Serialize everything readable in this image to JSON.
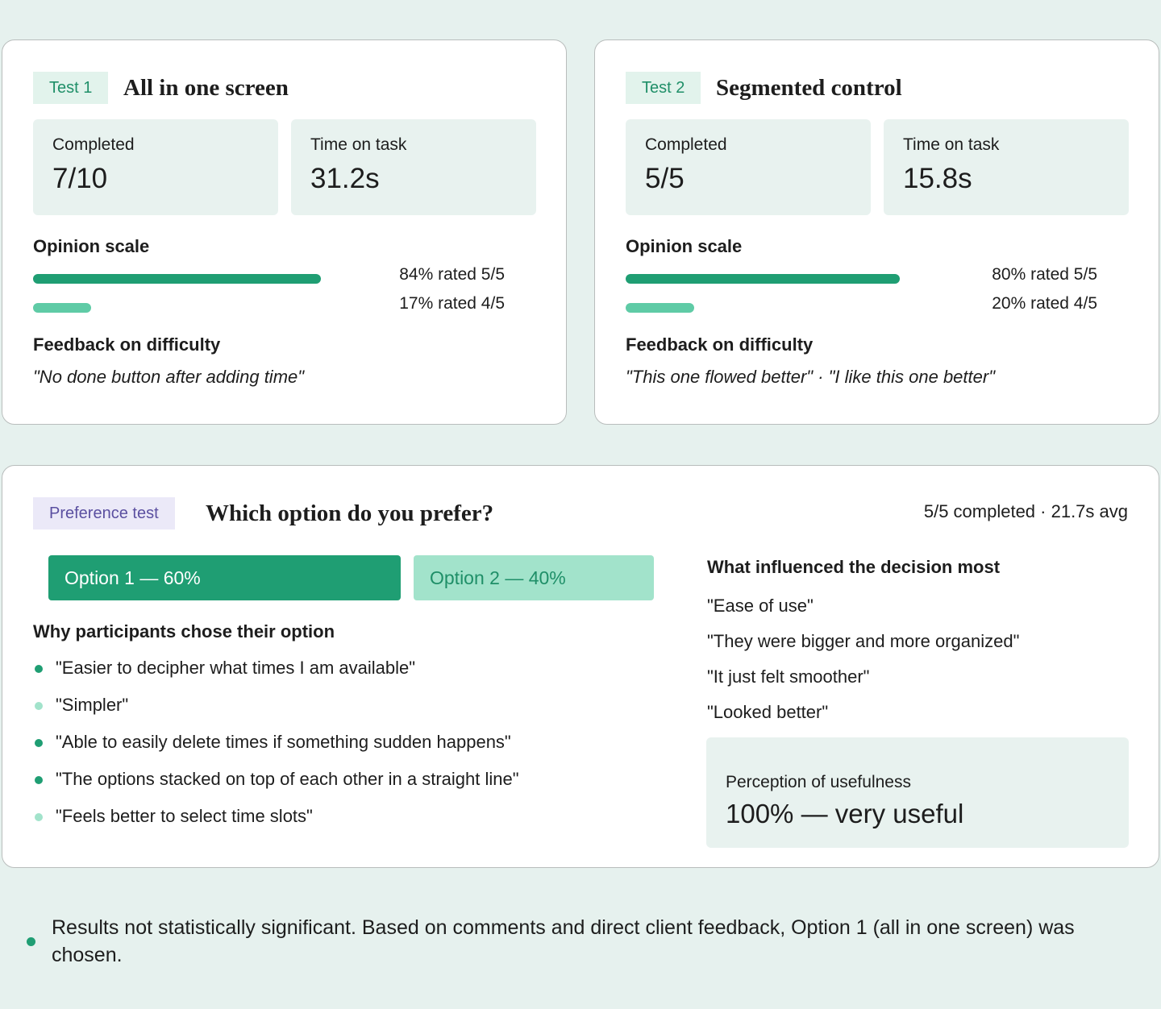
{
  "test1": {
    "tag": "Test 1",
    "title": "All in one screen",
    "stats": [
      {
        "label": "Completed",
        "value": "7/10"
      },
      {
        "label": "Time on task",
        "value": "31.2s"
      }
    ],
    "opinion": {
      "heading": "Opinion scale",
      "values": [
        84,
        17
      ],
      "value_labels": [
        "84% rated 5/5",
        "17% rated 4/5"
      ],
      "colors": [
        "#1f9e73",
        "#5fcba6"
      ]
    },
    "feedback": {
      "heading": "Feedback on difficulty",
      "quote": "\"No done button after adding time\""
    }
  },
  "test2": {
    "tag": "Test 2",
    "title": "Segmented control",
    "stats": [
      {
        "label": "Completed",
        "value": "5/5"
      },
      {
        "label": "Time on task",
        "value": "15.8s"
      }
    ],
    "opinion": {
      "heading": "Opinion scale",
      "values": [
        80,
        20
      ],
      "value_labels": [
        "80% rated 5/5",
        "20% rated 4/5"
      ],
      "colors": [
        "#1f9e73",
        "#5fcba6"
      ]
    },
    "feedback": {
      "heading": "Feedback on difficulty",
      "quote": "\"This one flowed better\" · \"I like this one better\""
    }
  },
  "preference": {
    "tag": "Preference test",
    "title": "Which option do you prefer?",
    "summary": "5/5 completed · 21.7s avg",
    "options": {
      "values": [
        60,
        40
      ],
      "value_labels": [
        "Option 1 — 60%",
        "Option 2 — 40%"
      ],
      "colors": [
        "#1f9e73",
        "#a2e3cb"
      ],
      "text_colors": [
        "#ffffff",
        "#1f8f68"
      ]
    },
    "why": {
      "heading": "Why participants chose their option",
      "items": [
        {
          "text": "\"Easier to decipher what times I am available\"",
          "color": "#1f9e73"
        },
        {
          "text": "\"Simpler\"",
          "color": "#a2e3cb"
        },
        {
          "text": "\"Able to easily delete times if something sudden happens\"",
          "color": "#1f9e73"
        },
        {
          "text": "\"The options stacked on top of each other in a straight line\"",
          "color": "#1f9e73"
        },
        {
          "text": "\"Feels better to select time slots\"",
          "color": "#a2e3cb"
        }
      ]
    },
    "influence": {
      "heading": "What influenced the decision most",
      "quotes": [
        "\"Ease of use\"",
        "\"They were bigger and more organized\"",
        "\"It just felt smoother\"",
        "\"Looked better\""
      ]
    },
    "usefulness": {
      "label": "Perception of usefulness",
      "value": "100% — very useful"
    }
  },
  "footer": "Results not statistically significant. Based on comments and direct client feedback, Option 1 (all in one screen) was chosen."
}
